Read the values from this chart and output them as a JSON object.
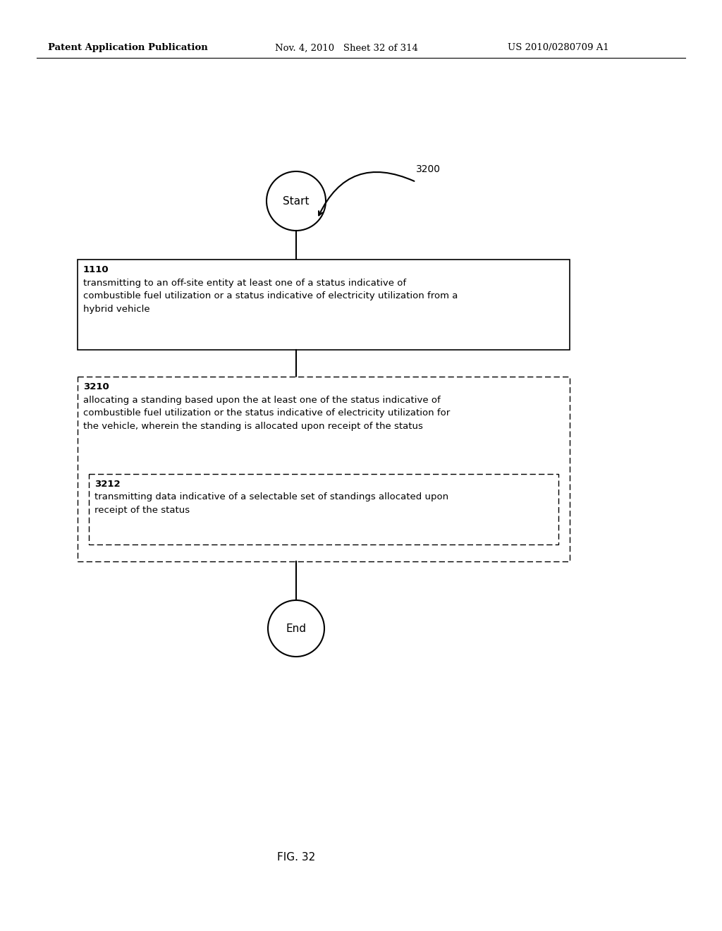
{
  "bg_color": "#ffffff",
  "header_left": "Patent Application Publication",
  "header_mid": "Nov. 4, 2010   Sheet 32 of 314",
  "header_right": "US 2010/0280709 A1",
  "fig_label": "FIG. 32",
  "flow_label": "3200",
  "start_label": "Start",
  "end_label": "End",
  "box1_id": "1110",
  "box1_text": "transmitting to an off-site entity at least one of a status indicative of\ncombustible fuel utilization or a status indicative of electricity utilization from a\nhybrid vehicle",
  "box2_id": "3210",
  "box2_text": "allocating a standing based upon the at least one of the status indicative of\ncombustible fuel utilization or the status indicative of electricity utilization for\nthe vehicle, wherein the standing is allocated upon receipt of the status",
  "box3_id": "3212",
  "box3_text": "transmitting data indicative of a selectable set of standings allocated upon\nreceipt of the status",
  "line_color": "#000000",
  "text_color": "#000000"
}
